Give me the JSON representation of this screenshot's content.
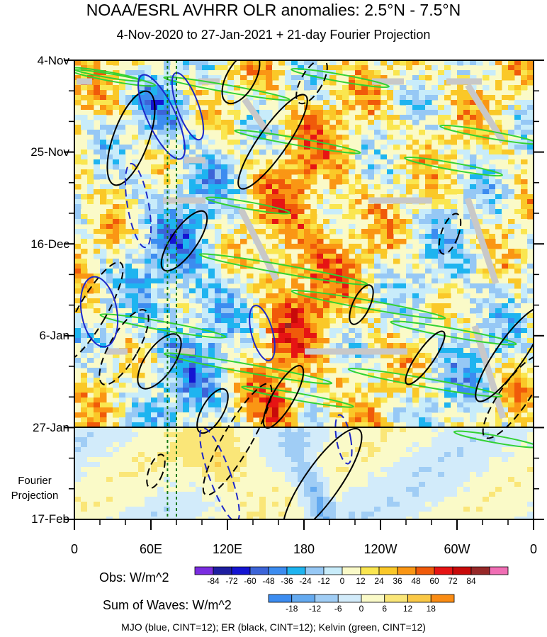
{
  "chart_data": {
    "type": "heatmap",
    "title": "NOAA/ESRL AVHRR OLR anomalies: 2.5°N - 7.5°N",
    "subtitle": "4-Nov-2020 to 27-Jan-2021 + 21-day Fourier Projection",
    "x_ticks": [
      "0",
      "60E",
      "120E",
      "180",
      "120W",
      "60W",
      "0"
    ],
    "x_tick_lon": [
      0,
      60,
      120,
      180,
      240,
      300,
      360
    ],
    "y_ticks": [
      "4-Nov",
      "25-Nov",
      "16-Dec",
      "6-Jan",
      "27-Jan",
      "17-Feb"
    ],
    "y_tick_day": [
      0,
      21,
      42,
      63,
      84,
      105
    ],
    "projection_label": [
      "Fourier",
      "Projection"
    ],
    "projection_start_day": 84,
    "obs_colorbar": {
      "title": "Obs: W/m^2",
      "levels": [
        "-84",
        "-72",
        "-60",
        "-48",
        "-36",
        "-24",
        "-12",
        "0",
        "12",
        "24",
        "36",
        "48",
        "60",
        "72",
        "84"
      ],
      "colors": [
        "#7a2ce0",
        "#1e1ea0",
        "#1414d2",
        "#3c64d8",
        "#3c8cf0",
        "#1eb4f0",
        "#96c8f5",
        "#c8ecfa",
        "#fafac8",
        "#fae650",
        "#fac828",
        "#fa9614",
        "#f05a0a",
        "#e61414",
        "#c80a0a",
        "#962828",
        "#f06eb4"
      ]
    },
    "waves_colorbar": {
      "title": "Sum of Waves: W/m^2",
      "levels": [
        "-18",
        "-12",
        "-6",
        "0",
        "6",
        "12",
        "18"
      ],
      "colors": [
        "#3c8cf0",
        "#64aaf0",
        "#a0cdf5",
        "#d2ebfa",
        "#fafac8",
        "#fae678",
        "#fac846",
        "#fa8c14"
      ]
    },
    "contours": [
      {
        "wave": "MJO",
        "color": "#1e28c8",
        "cint": 12
      },
      {
        "wave": "ER",
        "color": "#000000",
        "cint": 12
      },
      {
        "wave": "Kelvin",
        "color": "#32d232",
        "cint": 12
      }
    ],
    "reference_lines_lon": [
      73,
      80
    ],
    "footer": "MJO (blue, CINT=12); ER (black, CINT=12); Kelvin (green, CINT=12)"
  }
}
